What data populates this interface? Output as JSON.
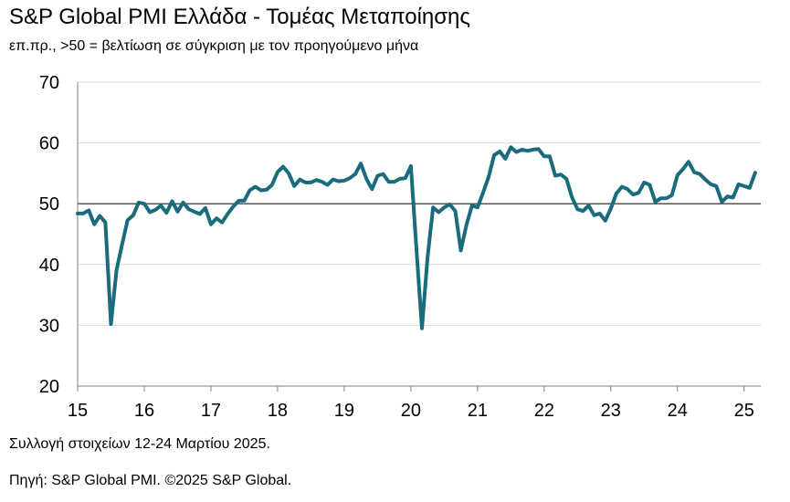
{
  "title": "S&P Global PMI Ελλάδα - Τομέας Μεταποίησης",
  "subtitle": "επ.πρ., >50 = βελτίωση σε σύγκριση με τον προηγούμενο μήνα",
  "note": "Συλλογή στοιχείων 12-24 Μαρτίου 2025.",
  "source": "Πηγή: S&P Global PMI. ©2025 S&P Global.",
  "colors": {
    "line": "#1a6b7c",
    "grid": "#d9d9d9",
    "axis": "#808080"
  },
  "chart_data": {
    "type": "line",
    "title": "S&P Global PMI Ελλάδα - Τομέας Μεταποίησης",
    "ylim": [
      20,
      70
    ],
    "yticks": [
      20,
      30,
      40,
      50,
      60,
      70
    ],
    "xlim": [
      2015.0,
      2025.25
    ],
    "xticks": [
      {
        "value": 2015,
        "label": "15"
      },
      {
        "value": 2016,
        "label": "16"
      },
      {
        "value": 2017,
        "label": "17"
      },
      {
        "value": 2018,
        "label": "18"
      },
      {
        "value": 2019,
        "label": "19"
      },
      {
        "value": 2020,
        "label": "20"
      },
      {
        "value": 2021,
        "label": "21"
      },
      {
        "value": 2022,
        "label": "22"
      },
      {
        "value": 2023,
        "label": "23"
      },
      {
        "value": 2024,
        "label": "24"
      },
      {
        "value": 2025,
        "label": "25"
      }
    ],
    "grid": true,
    "reference_line": 50,
    "series": [
      {
        "start": "2015-01",
        "frequency": "monthly",
        "values": [
          48.4,
          48.4,
          48.9,
          46.6,
          48.0,
          46.9,
          30.2,
          39.1,
          43.3,
          47.3,
          48.1,
          50.2,
          50.0,
          48.6,
          49.0,
          49.7,
          48.5,
          50.4,
          48.7,
          50.2,
          49.1,
          48.7,
          48.3,
          49.3,
          46.6,
          47.6,
          46.9,
          48.3,
          49.5,
          50.5,
          50.5,
          52.2,
          52.8,
          52.2,
          52.3,
          53.1,
          55.2,
          56.1,
          55.0,
          52.9,
          54.0,
          53.5,
          53.5,
          53.9,
          53.6,
          53.1,
          54.0,
          53.7,
          53.8,
          54.2,
          54.9,
          56.6,
          54.1,
          52.4,
          54.6,
          54.9,
          53.6,
          53.6,
          54.1,
          54.2,
          56.2,
          42.5,
          29.5,
          41.1,
          49.4,
          48.6,
          49.4,
          49.9,
          48.8,
          42.3,
          46.5,
          49.7,
          49.4,
          51.8,
          54.4,
          58.0,
          58.6,
          57.4,
          59.3,
          58.5,
          58.9,
          58.7,
          58.9,
          59.0,
          57.8,
          57.8,
          54.6,
          54.8,
          54.1,
          51.1,
          49.1,
          48.8,
          49.7,
          48.1,
          48.4,
          47.2,
          49.2,
          51.7,
          52.8,
          52.4,
          51.5,
          51.8,
          53.5,
          53.1,
          50.3,
          50.9,
          50.9,
          51.4,
          54.7,
          55.7,
          56.9,
          55.2,
          54.9,
          54.0,
          53.2,
          52.9,
          50.3,
          51.2,
          51.0,
          53.2,
          52.9,
          52.6,
          55.1
        ]
      }
    ]
  }
}
